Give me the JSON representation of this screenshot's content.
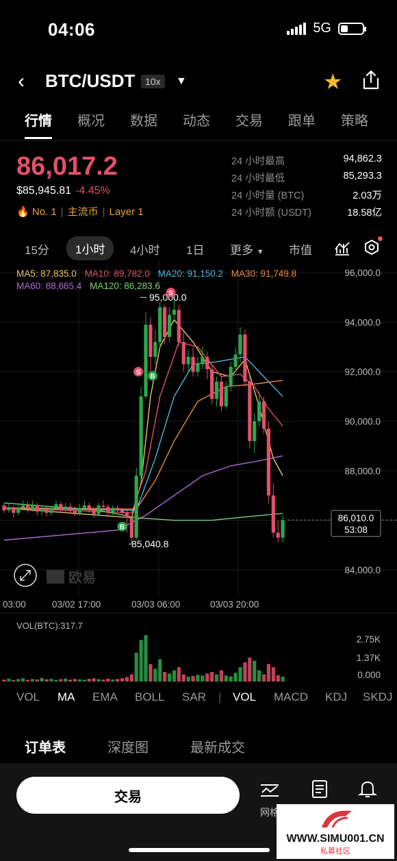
{
  "status": {
    "time": "04:06",
    "network": "5G"
  },
  "header": {
    "pair": "BTC/USDT",
    "leverage": "10x"
  },
  "tabs": [
    "行情",
    "概况",
    "数据",
    "动态",
    "交易",
    "跟单",
    "策略"
  ],
  "ticker": {
    "last_price": "86,017.2",
    "usd_price": "$85,945.81",
    "change_pct": "-4.45%",
    "rank": "No. 1",
    "tag1": "主流币",
    "tag2": "Layer 1"
  },
  "stats": [
    {
      "label": "24 小时最高",
      "value": "94,862.3"
    },
    {
      "label": "24 小时最低",
      "value": "85,293.3"
    },
    {
      "label": "24 小时量 (BTC)",
      "value": "2.03万"
    },
    {
      "label": "24 小时额 (USDT)",
      "value": "18.58亿"
    }
  ],
  "intervals": [
    "15分",
    "1小时",
    "4小时",
    "1日",
    "更多",
    "市值"
  ],
  "ma": {
    "ma5": "MA5: 87,835.0",
    "ma10": "MA10: 89,782.0",
    "ma20": "MA20: 91,150.2",
    "ma30": "MA30: 91,749.8",
    "ma60": "MA60: 88,665.4",
    "ma120": "MA120: 86,283.6"
  },
  "colors": {
    "up": "#2ca84a",
    "down": "#e2506a",
    "ma5": "#f0c46a",
    "ma10": "#e2506a",
    "ma20": "#4cb8e0",
    "ma30": "#f08a3a",
    "ma60": "#b06cd8",
    "ma120": "#7ed07e"
  },
  "chart_data": {
    "type": "candlestick",
    "y_axis_labels": [
      "96,000.0",
      "94,000.0",
      "92,000.0",
      "90,000.0",
      "88,000.0",
      "86,000.0",
      "84,000.0"
    ],
    "ylim": [
      83000,
      96500
    ],
    "x_axis_labels": [
      "03:00",
      "03/02 17:00",
      "03/03 06:00",
      "03/03 20:00"
    ],
    "high_marker": "95,000.0",
    "low_marker": "85,040.8",
    "current_price": "86,010.0",
    "countdown": "53:08",
    "candles": [
      [
        86600,
        86400,
        86700,
        86300
      ],
      [
        86400,
        86500,
        86700,
        86300
      ],
      [
        86500,
        86300,
        86600,
        86100
      ],
      [
        86300,
        86500,
        86600,
        86200
      ],
      [
        86500,
        86600,
        86800,
        86400
      ],
      [
        86600,
        86450,
        86750,
        86300
      ],
      [
        86450,
        86600,
        86800,
        86350
      ],
      [
        86600,
        86350,
        86700,
        86200
      ],
      [
        86350,
        86450,
        86600,
        86200
      ],
      [
        86450,
        86300,
        86550,
        86150
      ],
      [
        86300,
        86500,
        86600,
        86200
      ],
      [
        86500,
        86650,
        86800,
        86400
      ],
      [
        86650,
        86450,
        86750,
        86300
      ],
      [
        86450,
        86550,
        86700,
        86350
      ],
      [
        86550,
        86400,
        86700,
        86250
      ],
      [
        86400,
        86300,
        86550,
        86150
      ],
      [
        86300,
        86500,
        86650,
        86200
      ],
      [
        86500,
        86600,
        86800,
        86400
      ],
      [
        86600,
        86450,
        86700,
        86300
      ],
      [
        86450,
        86250,
        86550,
        86100
      ],
      [
        86250,
        86600,
        86700,
        86150
      ],
      [
        86600,
        86550,
        86800,
        86400
      ],
      [
        86550,
        86300,
        86650,
        86200
      ],
      [
        86300,
        86500,
        86600,
        86200
      ],
      [
        86500,
        86400,
        86600,
        86300
      ],
      [
        86400,
        86300,
        86500,
        86200
      ],
      [
        86300,
        86100,
        86400,
        85500
      ],
      [
        86100,
        85300,
        86200,
        85040
      ],
      [
        85300,
        87800,
        88100,
        85200
      ],
      [
        87800,
        91000,
        91400,
        87600
      ],
      [
        91000,
        93900,
        94400,
        90900
      ],
      [
        93900,
        92600,
        94200,
        92000
      ],
      [
        92600,
        93200,
        93700,
        92300
      ],
      [
        93200,
        94600,
        94800,
        92900
      ],
      [
        94600,
        93400,
        94700,
        93100
      ],
      [
        93400,
        94300,
        94600,
        93200
      ],
      [
        94300,
        94500,
        95000,
        94000
      ],
      [
        94500,
        93200,
        94700,
        93000
      ],
      [
        93200,
        92300,
        93600,
        92000
      ],
      [
        92300,
        92600,
        92900,
        92000
      ],
      [
        92600,
        92000,
        93000,
        91800
      ],
      [
        92000,
        92300,
        92600,
        91800
      ],
      [
        92300,
        92600,
        93000,
        92100
      ],
      [
        92600,
        92100,
        92800,
        91700
      ],
      [
        92100,
        90900,
        92300,
        90700
      ],
      [
        90900,
        91600,
        91800,
        90600
      ],
      [
        91600,
        90600,
        91800,
        90400
      ],
      [
        90600,
        91400,
        91600,
        90500
      ],
      [
        91400,
        92200,
        92400,
        91200
      ],
      [
        92200,
        92700,
        93000,
        92000
      ],
      [
        92700,
        93500,
        93800,
        92400
      ],
      [
        93500,
        91600,
        93700,
        91400
      ],
      [
        91600,
        89200,
        91800,
        88900
      ],
      [
        89200,
        90000,
        90300,
        88700
      ],
      [
        90000,
        90800,
        91200,
        89800
      ],
      [
        90800,
        89700,
        91000,
        89500
      ],
      [
        89700,
        87000,
        90000,
        86700
      ],
      [
        87000,
        85500,
        87500,
        85300
      ],
      [
        85500,
        85300,
        86000,
        85100
      ],
      [
        85300,
        86010,
        86200,
        85100
      ]
    ],
    "ma_series": {
      "MA5": [
        [
          0,
          86500
        ],
        [
          27,
          86100
        ],
        [
          29,
          87500
        ],
        [
          31,
          91000
        ],
        [
          33,
          93000
        ],
        [
          36,
          94100
        ],
        [
          40,
          93200
        ],
        [
          44,
          92000
        ],
        [
          48,
          91800
        ],
        [
          51,
          92500
        ],
        [
          54,
          90600
        ],
        [
          57,
          88500
        ],
        [
          59,
          87800
        ]
      ],
      "MA10": [
        [
          0,
          86500
        ],
        [
          27,
          86300
        ],
        [
          30,
          88000
        ],
        [
          33,
          91000
        ],
        [
          37,
          93200
        ],
        [
          41,
          93000
        ],
        [
          46,
          91800
        ],
        [
          50,
          91900
        ],
        [
          53,
          91400
        ],
        [
          56,
          90500
        ],
        [
          59,
          89800
        ]
      ],
      "MA20": [
        [
          0,
          86500
        ],
        [
          28,
          86400
        ],
        [
          32,
          88500
        ],
        [
          36,
          91000
        ],
        [
          40,
          92300
        ],
        [
          45,
          92400
        ],
        [
          51,
          92600
        ],
        [
          55,
          91800
        ],
        [
          59,
          91000
        ]
      ],
      "MA30": [
        [
          0,
          86500
        ],
        [
          28,
          86450
        ],
        [
          32,
          87600
        ],
        [
          36,
          89200
        ],
        [
          41,
          90800
        ],
        [
          47,
          91400
        ],
        [
          53,
          91500
        ],
        [
          59,
          91650
        ]
      ],
      "MA60": [
        [
          0,
          85200
        ],
        [
          24,
          85600
        ],
        [
          30,
          86200
        ],
        [
          36,
          87000
        ],
        [
          42,
          87800
        ],
        [
          48,
          88200
        ],
        [
          54,
          88400
        ],
        [
          59,
          88600
        ]
      ],
      "MA120": [
        [
          0,
          86700
        ],
        [
          20,
          86400
        ],
        [
          28,
          86100
        ],
        [
          36,
          86000
        ],
        [
          44,
          86000
        ],
        [
          52,
          86150
        ],
        [
          59,
          86280
        ]
      ]
    },
    "volume": {
      "label": "VOL(BTC):317.7",
      "axis": [
        "2.75K",
        "1.37K",
        "0.000"
      ],
      "max": 3000,
      "values": [
        120,
        180,
        90,
        150,
        200,
        110,
        160,
        130,
        220,
        140,
        170,
        100,
        150,
        190,
        120,
        160,
        140,
        110,
        170,
        200,
        150,
        120,
        180,
        130,
        160,
        210,
        280,
        450,
        1800,
        2600,
        2900,
        1100,
        800,
        1400,
        600,
        500,
        700,
        900,
        450,
        300,
        350,
        420,
        380,
        500,
        600,
        450,
        700,
        380,
        320,
        550,
        900,
        1200,
        1500,
        1300,
        700,
        450,
        1100,
        900,
        400,
        300
      ]
    }
  },
  "indicator_tabs": [
    "VOL",
    "MA",
    "EMA",
    "BOLL",
    "SAR",
    "VOL",
    "MACD",
    "KDJ",
    "SKDJ"
  ],
  "orderbook_tabs": [
    "订单表",
    "深度图",
    "最新成交"
  ],
  "bottom": {
    "trade": "交易",
    "grid": "网格"
  },
  "watermark": "WWW.SIMU001.CN",
  "watermark_sub": "私募社区",
  "brand_watermark": "欧易"
}
